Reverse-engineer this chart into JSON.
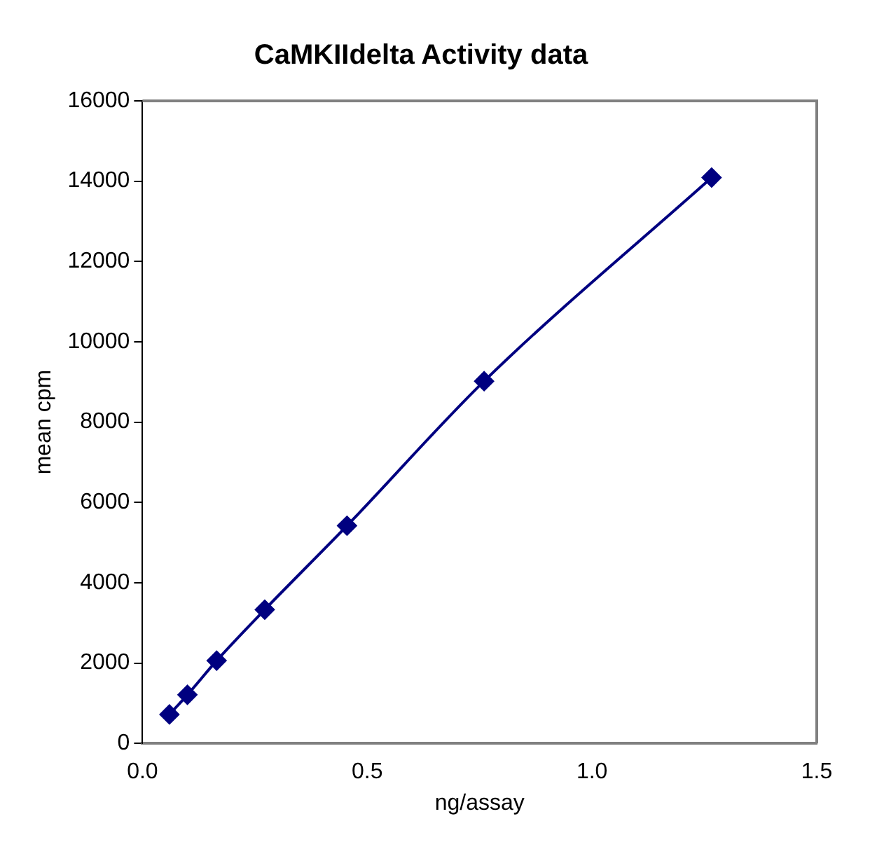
{
  "chart_data": {
    "type": "line",
    "title": "CaMKIIdelta Activity data",
    "xlabel": "ng/assay",
    "ylabel": "mean cpm",
    "x": [
      0.06,
      0.1,
      0.165,
      0.272,
      0.455,
      0.76,
      1.266
    ],
    "series": [
      {
        "color": "#000080",
        "values": [
          720,
          1210,
          2060,
          3330,
          5420,
          9020,
          14090
        ]
      }
    ],
    "xlim": [
      0,
      1.5
    ],
    "xticks": [
      {
        "value": 0,
        "label": "0.0"
      },
      {
        "value": 0.5,
        "label": "0.5"
      },
      {
        "value": 1,
        "label": "1.0"
      },
      {
        "value": 1.5,
        "label": "1.5"
      }
    ],
    "ylim": [
      0,
      16000
    ],
    "yticks": [
      0,
      2000,
      4000,
      6000,
      8000,
      10000,
      12000,
      14000,
      16000
    ],
    "grid": false,
    "legend": false,
    "marker": "diamond",
    "line_style": "solid"
  }
}
